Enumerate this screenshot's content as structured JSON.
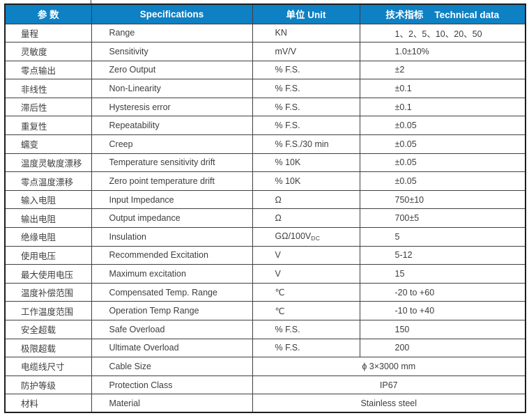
{
  "table": {
    "header_bg": "#0e80c4",
    "headers": {
      "col1": "参  数",
      "col2": "Specifications",
      "col3": "单位 Unit",
      "col4_zh": "技术指标",
      "col4_en": "Technical data"
    },
    "rows": [
      {
        "param": "量程",
        "spec": "Range",
        "unit": "KN",
        "value": "1、2、5、10、20、50"
      },
      {
        "param": "灵敏度",
        "spec": "Sensitivity",
        "unit": "mV/V",
        "value": "1.0±10%"
      },
      {
        "param": "零点输出",
        "spec": "Zero Output",
        "unit": "% F.S.",
        "value": "±2"
      },
      {
        "param": "非线性",
        "spec": "Non-Linearity",
        "unit": "% F.S.",
        "value": "±0.1"
      },
      {
        "param": "滞后性",
        "spec": "Hysteresis error",
        "unit": "% F.S.",
        "value": "±0.1"
      },
      {
        "param": "重复性",
        "spec": "Repeatability",
        "unit": "% F.S.",
        "value": "±0.05"
      },
      {
        "param": "蠕变",
        "spec": "Creep",
        "unit": "% F.S./30 min",
        "value": "±0.05"
      },
      {
        "param": "温度灵敏度漂移",
        "spec": "Temperature sensitivity drift",
        "unit": "% 10K",
        "value": "±0.05"
      },
      {
        "param": "零点温度漂移",
        "spec": "Zero point temperature drift",
        "unit": "% 10K",
        "value": "±0.05"
      },
      {
        "param": "输入电阻",
        "spec": "Input Impedance",
        "unit": "Ω",
        "value": "750±10"
      },
      {
        "param": "输出电阻",
        "spec": "Output impedance",
        "unit": "Ω",
        "value": "700±5"
      },
      {
        "param": "绝缘电阻",
        "spec": "Insulation",
        "unit": "GΩ/100V",
        "unit_sub": "DC",
        "value": "5"
      },
      {
        "param": "使用电压",
        "spec": "Recommended Excitation",
        "unit": "V",
        "value": "5-12"
      },
      {
        "param": "最大使用电压",
        "spec": "Maximum excitation",
        "unit": "V",
        "value": "15"
      },
      {
        "param": "温度补偿范围",
        "spec": "Compensated Temp. Range",
        "unit": "℃",
        "value": "-20 to +60"
      },
      {
        "param": "工作温度范围",
        "spec": "Operation Temp Range",
        "unit": "℃",
        "value": "-10 to +40"
      },
      {
        "param": "安全超载",
        "spec": "Safe Overload",
        "unit": "% F.S.",
        "value": "150"
      },
      {
        "param": "极限超载",
        "spec": "Ultimate Overload",
        "unit": "% F.S.",
        "value": "200"
      },
      {
        "param": "电缆线尺寸",
        "spec": "Cable Size",
        "merged_value": "ϕ 3×3000 mm"
      },
      {
        "param": "防护等级",
        "spec": "Protection Class",
        "merged_value": "IP67"
      },
      {
        "param": "材料",
        "spec": "Material",
        "merged_value": "Stainless steel"
      }
    ]
  }
}
